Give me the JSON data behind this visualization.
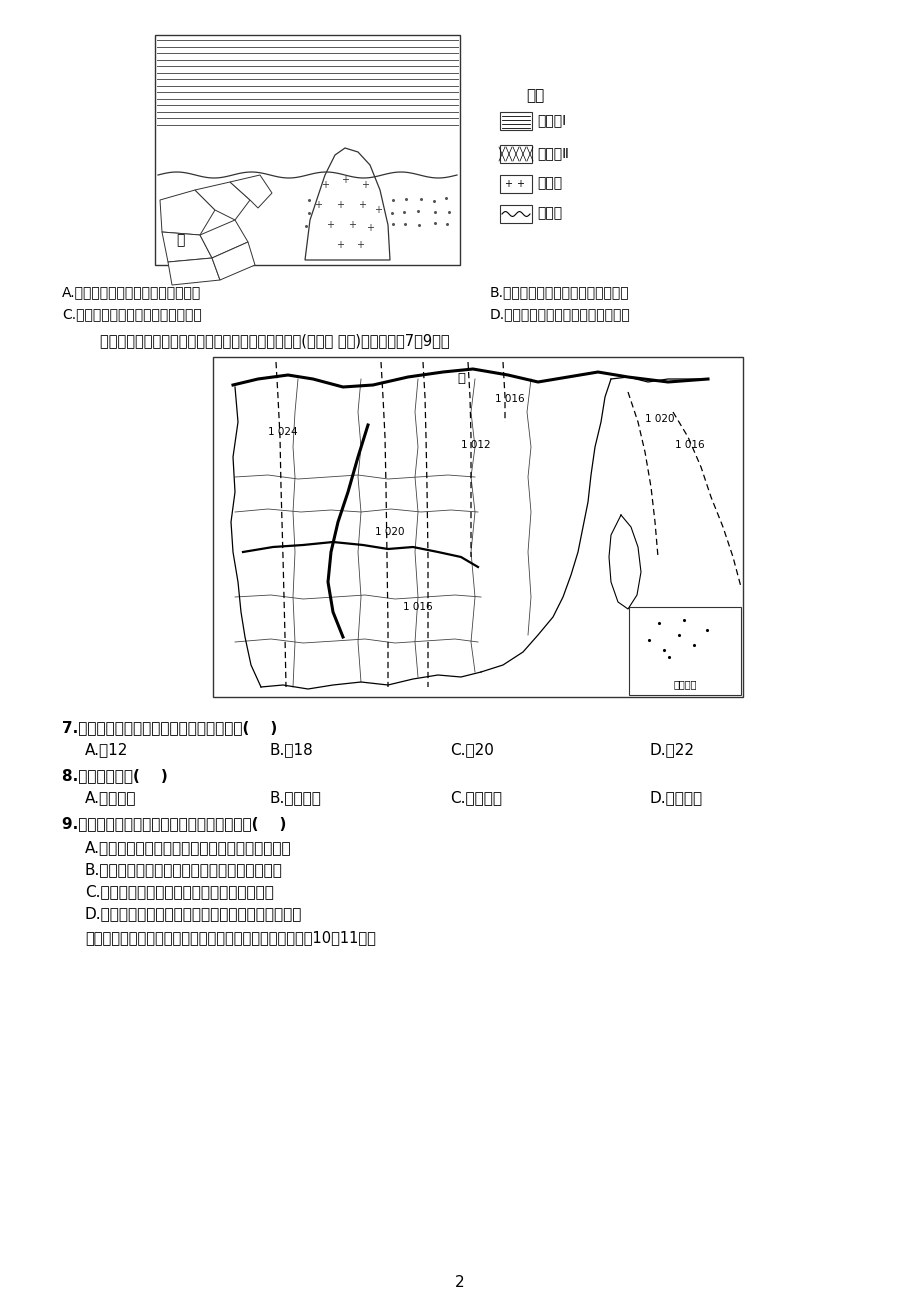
{
  "page_bg": "#ffffff",
  "page_number": "2",
  "title_intro": "下图为我国部分区域天气形势图，图中虚线为等压线(单位： 百帕)。读图回答7～9题。",
  "geo_legend_title": "图例",
  "geo_legend_items": [
    "沉积岩Ⅰ",
    "沉积岩Ⅱ",
    "花岗岩",
    "侵蚀面"
  ],
  "q6_line1_a": "A.　沉积作用、侵蚀作用、岩浆侵入",
  "q6_line1_b": "B.　岩浆侵入、侵蚀作用、沉积作用",
  "q6_line2_a": "C.　岩浆侵入、沉积作用、侵蚀作用",
  "q6_line2_b": "D.　侵蚀作用、沉积作用、岩浆侵入",
  "q7_stem": "7.　此时图示区域水平气压差最大值可能为(    )",
  "q7_a": "A.　12",
  "q7_b": "B.　18",
  "q7_c": "C.　20",
  "q7_d": "D.　22",
  "q8_stem": "8.　此时甲地吹(    )",
  "q8_a": "A.　西北风",
  "q8_b": "B.　东北风",
  "q8_c": "C.　西南风",
  "q8_d": "D.　东南风",
  "q9_stem": "9.　有关此时我国天气状况的描述，正确的是(    )",
  "q9_a": "A.　全国绝大部分地区受冷高压控制，多阴雨天气",
  "q9_b": "B.　冷锋已经到达华南地区，华南地区降温降水",
  "q9_c": "C.　冷锋已经到达东北地区，带来了阴雨天气",
  "q9_d": "D.　全国大部分地区受副热带高气压控制，天气晴朗",
  "last_line": "　　读世界某大陆西岸年降水量随纬度的变化曲线图，回答10～11题。",
  "map_label_jia": "甲",
  "map_label_nhzd": "南海诸岛",
  "geo_label_jia": "甲"
}
